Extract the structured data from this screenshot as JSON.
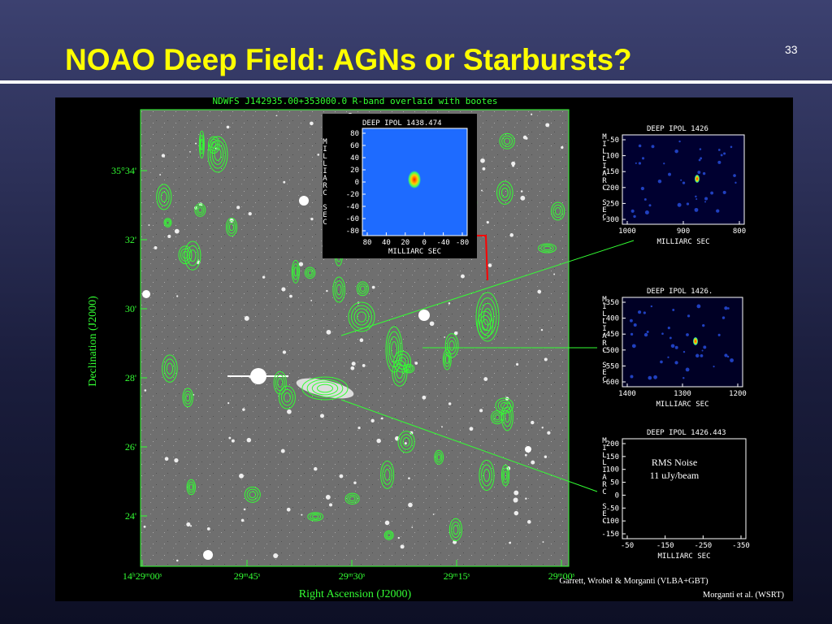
{
  "slide": {
    "title": "NOAO Deep Field: AGNs or Starbursts?",
    "page_number": "33",
    "main_image": {
      "header": "NDWFS J142935.00+353000.0 R-band overlaid with bootes",
      "y_label": "Declination (J2000)",
      "x_label": "Right Ascension (J2000)",
      "y_ticks": [
        "35°34'",
        "32'",
        "30'",
        "28'",
        "26'",
        "24'"
      ],
      "x_ticks": [
        "14ʰ29ᵐ00ˢ",
        "29ᵐ45ˢ",
        "29ᵐ30ˢ",
        "29ᵐ15ˢ",
        "29ᵐ00ˢ"
      ]
    },
    "panels": [
      {
        "title": "DEEP IPOL  1438.474",
        "y_label": "MILLIARC SEC",
        "x_label": "MILLIARC SEC",
        "y_ticks": [
          "80",
          "60",
          "40",
          "20",
          "0",
          "-20",
          "-40",
          "-60",
          "-80"
        ],
        "x_ticks": [
          "80",
          "40",
          "20",
          "0",
          "-40",
          "-80"
        ]
      },
      {
        "title": "DEEP IPOL  1426",
        "y_label": "MILLIARC SEC",
        "x_label": "MILLIARC SEC",
        "y_ticks": [
          "-50",
          "-100",
          "-150",
          "-200",
          "-250",
          "-300"
        ],
        "x_ticks": [
          "1000",
          "900",
          "800"
        ]
      },
      {
        "title": "DEEP IPOL  1426.",
        "y_label": "MILLIARC SEC",
        "x_label": "MILLIARC SEC",
        "y_ticks": [
          "-350",
          "-400",
          "-450",
          "-500",
          "-550",
          "-600"
        ],
        "x_ticks": [
          "1400",
          "1300",
          "1200"
        ]
      },
      {
        "title": "DEEP IPOL  1426.443",
        "y_label": "MILLIARC SEC",
        "x_label": "MILLIARC SEC",
        "y_ticks": [
          "200",
          "150",
          "100",
          "50",
          "0",
          "-50",
          "-100",
          "-150"
        ],
        "x_ticks": [
          "-50",
          "-150",
          "-250",
          "-350"
        ],
        "annotation": [
          "RMS Noise",
          "11 uJy/beam"
        ]
      }
    ],
    "credits": [
      "Garrett, Wrobel & Morganti (VLBA+GBT)",
      "Morganti et al. (WSRT)"
    ]
  }
}
